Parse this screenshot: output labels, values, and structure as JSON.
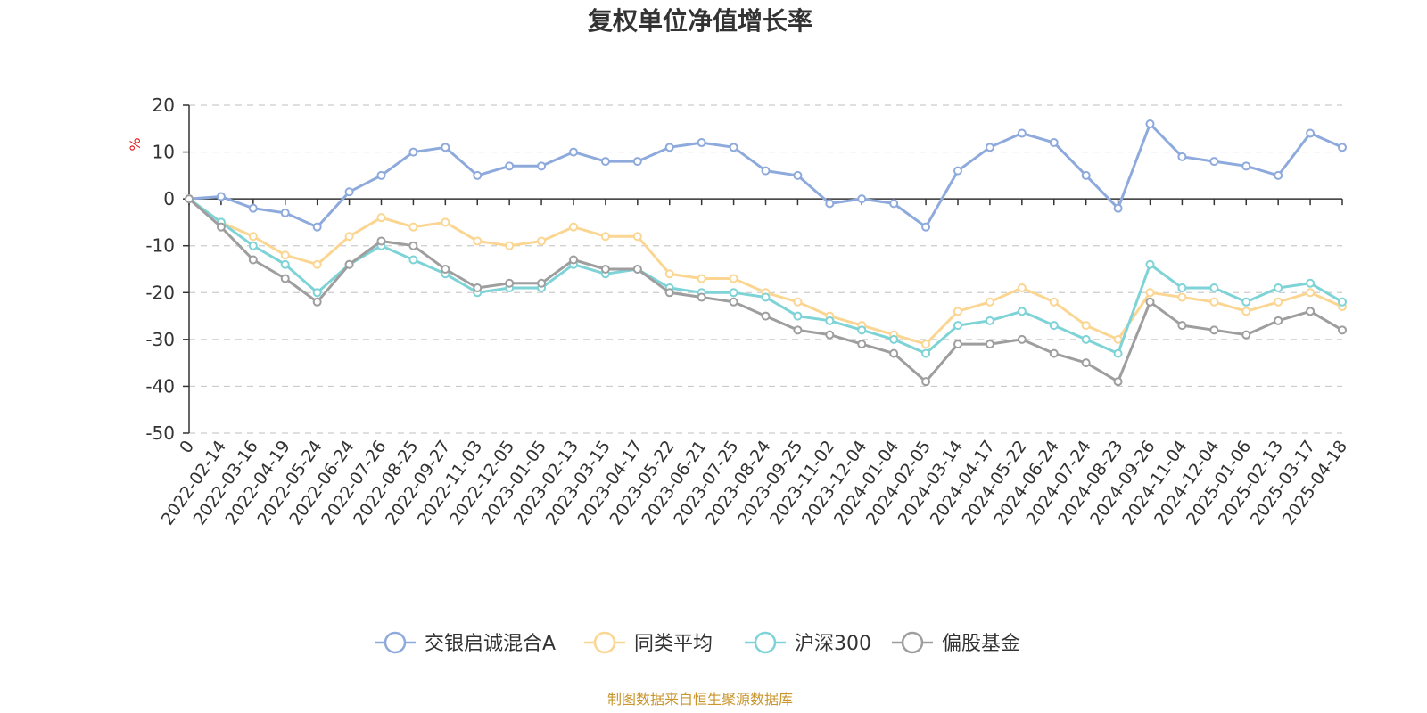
{
  "chart_data": {
    "type": "line",
    "title": "复权单位净值增长率",
    "ylabel": "%",
    "ylim": [
      -50,
      20
    ],
    "yticks": [
      20,
      10,
      0,
      -10,
      -20,
      -30,
      -40,
      -50
    ],
    "grid": true,
    "legend_position": "bottom",
    "x": [
      "0",
      "2022-02-14",
      "2022-03-16",
      "2022-04-19",
      "2022-05-24",
      "2022-06-24",
      "2022-07-26",
      "2022-08-25",
      "2022-09-27",
      "2022-11-03",
      "2022-12-05",
      "2023-01-05",
      "2023-02-13",
      "2023-03-15",
      "2023-04-17",
      "2023-05-22",
      "2023-06-21",
      "2023-07-25",
      "2023-08-24",
      "2023-09-25",
      "2023-11-02",
      "2023-12-04",
      "2024-01-04",
      "2024-02-05",
      "2024-03-14",
      "2024-04-17",
      "2024-05-22",
      "2024-06-24",
      "2024-07-24",
      "2024-08-23",
      "2024-09-26",
      "2024-11-04",
      "2024-12-04",
      "2025-01-06",
      "2025-02-13",
      "2025-03-17",
      "2025-04-18"
    ],
    "series": [
      {
        "name": "交银启诚混合A",
        "color": "#8eaadc",
        "values": [
          0,
          0.5,
          -2,
          -3,
          -6,
          1.5,
          5,
          10,
          11,
          5,
          7,
          7,
          10,
          8,
          8,
          11,
          12,
          11,
          6,
          5,
          -1,
          0,
          -1,
          -6,
          6,
          11,
          14,
          12,
          5,
          -2,
          16,
          9,
          8,
          7,
          5,
          14,
          11
        ]
      },
      {
        "name": "同类平均",
        "color": "#fbd693",
        "values": [
          0,
          -5,
          -8,
          -12,
          -14,
          -8,
          -4,
          -6,
          -5,
          -9,
          -10,
          -9,
          -6,
          -8,
          -8,
          -16,
          -17,
          -17,
          -20,
          -22,
          -25,
          -27,
          -29,
          -31,
          -24,
          -22,
          -19,
          -22,
          -27,
          -30,
          -20,
          -21,
          -22,
          -24,
          -22,
          -20,
          -23
        ]
      },
      {
        "name": "沪深300",
        "color": "#7ed3d7",
        "values": [
          0,
          -5,
          -10,
          -14,
          -20,
          -14,
          -10,
          -13,
          -16,
          -20,
          -19,
          -19,
          -14,
          -16,
          -15,
          -19,
          -20,
          -20,
          -21,
          -25,
          -26,
          -28,
          -30,
          -33,
          -27,
          -26,
          -24,
          -27,
          -30,
          -33,
          -14,
          -19,
          -19,
          -22,
          -19,
          -18,
          -22
        ]
      },
      {
        "name": "偏股基金",
        "color": "#9e9e9e",
        "values": [
          0,
          -6,
          -13,
          -17,
          -22,
          -14,
          -9,
          -10,
          -15,
          -19,
          -18,
          -18,
          -13,
          -15,
          -15,
          -20,
          -21,
          -22,
          -25,
          -28,
          -29,
          -31,
          -33,
          -39,
          -31,
          -31,
          -30,
          -33,
          -35,
          -39,
          -22,
          -27,
          -28,
          -29,
          -26,
          -24,
          -28
        ]
      }
    ]
  },
  "source_note": "制图数据来自恒生聚源数据库"
}
